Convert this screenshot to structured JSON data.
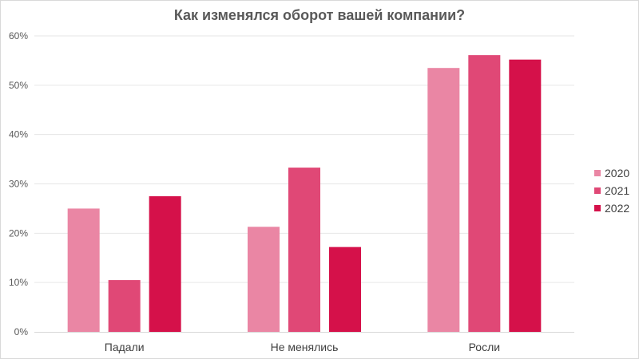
{
  "chart_data": {
    "type": "bar",
    "title": "Как изменялся оборот вашей компании?",
    "categories": [
      "Падали",
      "Не менялись",
      "Росли"
    ],
    "series": [
      {
        "name": "2020",
        "color": "#ea86a4",
        "values": [
          25.0,
          21.3,
          53.5
        ]
      },
      {
        "name": "2021",
        "color": "#e04876",
        "values": [
          10.5,
          33.3,
          56.1
        ]
      },
      {
        "name": "2022",
        "color": "#d5114a",
        "values": [
          27.5,
          17.2,
          55.2
        ]
      }
    ],
    "ylim": [
      0,
      60
    ],
    "yticks": [
      0,
      10,
      20,
      30,
      40,
      50,
      60
    ],
    "ytick_labels": [
      "0%",
      "10%",
      "20%",
      "30%",
      "40%",
      "50%",
      "60%"
    ],
    "xlabel": "",
    "ylabel": "",
    "grid": true,
    "legend_position": "right"
  }
}
